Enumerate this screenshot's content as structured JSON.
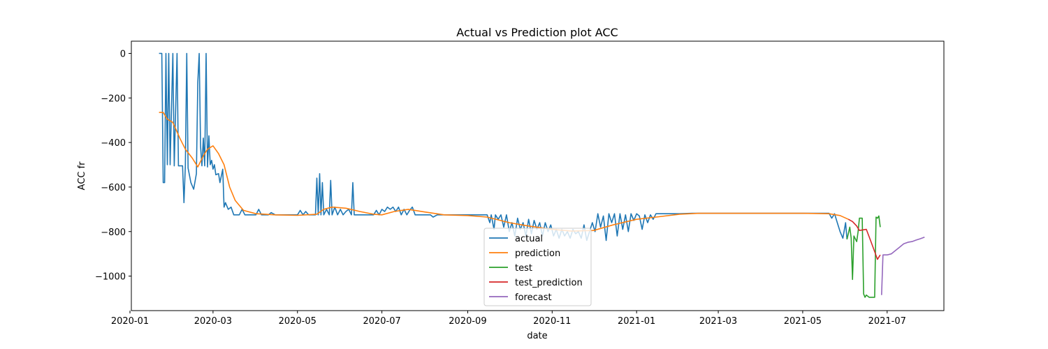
{
  "chart_data": {
    "type": "line",
    "title": "Actual vs Prediction plot ACC",
    "xlabel": "date",
    "ylabel": "ACC fr",
    "xlim": [
      "2020-01-02",
      "2021-08-11"
    ],
    "ylim": [
      -1155,
      55
    ],
    "x_ticks": [
      "2020-01",
      "2020-03",
      "2020-05",
      "2020-07",
      "2020-09",
      "2020-11",
      "2021-01",
      "2021-03",
      "2021-05",
      "2021-07"
    ],
    "y_ticks": [
      0,
      -200,
      -400,
      -600,
      -800,
      -1000
    ],
    "y_tick_labels": [
      "0",
      "−200",
      "−400",
      "−600",
      "−800",
      "−1000"
    ],
    "grid": false,
    "legend_placement": "bottom-center",
    "series": [
      {
        "name": "actual",
        "color": "#1f77b4",
        "points": [
          [
            "2020-01-22",
            0
          ],
          [
            "2020-01-24",
            0
          ],
          [
            "2020-01-25",
            -580
          ],
          [
            "2020-01-26",
            -580
          ],
          [
            "2020-01-27",
            0
          ],
          [
            "2020-01-28",
            -500
          ],
          [
            "2020-01-29",
            0
          ],
          [
            "2020-01-30",
            -500
          ],
          [
            "2020-02-01",
            0
          ],
          [
            "2020-02-02",
            -505
          ],
          [
            "2020-02-04",
            0
          ],
          [
            "2020-02-05",
            -505
          ],
          [
            "2020-02-08",
            -505
          ],
          [
            "2020-02-09",
            -670
          ],
          [
            "2020-02-10",
            -505
          ],
          [
            "2020-02-11",
            0
          ],
          [
            "2020-02-12",
            -515
          ],
          [
            "2020-02-14",
            -580
          ],
          [
            "2020-02-16",
            -610
          ],
          [
            "2020-02-18",
            -540
          ],
          [
            "2020-02-19",
            -130
          ],
          [
            "2020-02-20",
            0
          ],
          [
            "2020-02-21",
            -420
          ],
          [
            "2020-02-22",
            -505
          ],
          [
            "2020-02-23",
            -380
          ],
          [
            "2020-02-24",
            -505
          ],
          [
            "2020-02-25",
            0
          ],
          [
            "2020-02-26",
            -510
          ],
          [
            "2020-02-27",
            -370
          ],
          [
            "2020-02-28",
            -500
          ],
          [
            "2020-02-29",
            -480
          ],
          [
            "2020-03-01",
            -520
          ],
          [
            "2020-03-02",
            -500
          ],
          [
            "2020-03-03",
            -545
          ],
          [
            "2020-03-05",
            -540
          ],
          [
            "2020-03-06",
            -580
          ],
          [
            "2020-03-08",
            -520
          ],
          [
            "2020-03-09",
            -690
          ],
          [
            "2020-03-10",
            -670
          ],
          [
            "2020-03-12",
            -700
          ],
          [
            "2020-03-14",
            -690
          ],
          [
            "2020-03-16",
            -725
          ],
          [
            "2020-03-20",
            -725
          ],
          [
            "2020-03-22",
            -700
          ],
          [
            "2020-03-24",
            -725
          ],
          [
            "2020-04-01",
            -725
          ],
          [
            "2020-04-03",
            -700
          ],
          [
            "2020-04-05",
            -725
          ],
          [
            "2020-04-10",
            -725
          ],
          [
            "2020-04-12",
            -715
          ],
          [
            "2020-04-15",
            -725
          ],
          [
            "2020-05-01",
            -725
          ],
          [
            "2020-05-03",
            -705
          ],
          [
            "2020-05-05",
            -725
          ],
          [
            "2020-05-07",
            -710
          ],
          [
            "2020-05-09",
            -725
          ],
          [
            "2020-05-14",
            -725
          ],
          [
            "2020-05-15",
            -560
          ],
          [
            "2020-05-16",
            -725
          ],
          [
            "2020-05-17",
            -540
          ],
          [
            "2020-05-18",
            -725
          ],
          [
            "2020-05-19",
            -580
          ],
          [
            "2020-05-20",
            -725
          ],
          [
            "2020-05-22",
            -700
          ],
          [
            "2020-05-24",
            -725
          ],
          [
            "2020-05-25",
            -570
          ],
          [
            "2020-05-26",
            -725
          ],
          [
            "2020-05-28",
            -690
          ],
          [
            "2020-05-30",
            -725
          ],
          [
            "2020-06-01",
            -700
          ],
          [
            "2020-06-03",
            -725
          ],
          [
            "2020-06-05",
            -710
          ],
          [
            "2020-06-07",
            -700
          ],
          [
            "2020-06-09",
            -725
          ],
          [
            "2020-06-10",
            -580
          ],
          [
            "2020-06-11",
            -725
          ],
          [
            "2020-06-15",
            -725
          ],
          [
            "2020-06-20",
            -725
          ],
          [
            "2020-06-25",
            -725
          ],
          [
            "2020-06-27",
            -705
          ],
          [
            "2020-06-29",
            -725
          ],
          [
            "2020-07-01",
            -700
          ],
          [
            "2020-07-03",
            -710
          ],
          [
            "2020-07-05",
            -690
          ],
          [
            "2020-07-07",
            -700
          ],
          [
            "2020-07-09",
            -690
          ],
          [
            "2020-07-11",
            -710
          ],
          [
            "2020-07-13",
            -690
          ],
          [
            "2020-07-15",
            -725
          ],
          [
            "2020-07-17",
            -700
          ],
          [
            "2020-07-19",
            -725
          ],
          [
            "2020-07-21",
            -705
          ],
          [
            "2020-07-23",
            -690
          ],
          [
            "2020-07-25",
            -725
          ],
          [
            "2020-08-01",
            -725
          ],
          [
            "2020-08-05",
            -725
          ],
          [
            "2020-08-07",
            -735
          ],
          [
            "2020-08-10",
            -725
          ],
          [
            "2020-08-20",
            -725
          ],
          [
            "2020-08-30",
            -725
          ],
          [
            "2020-09-05",
            -725
          ],
          [
            "2020-09-10",
            -725
          ],
          [
            "2020-09-15",
            -725
          ],
          [
            "2020-09-17",
            -760
          ],
          [
            "2020-09-18",
            -725
          ],
          [
            "2020-09-20",
            -790
          ],
          [
            "2020-09-21",
            -725
          ],
          [
            "2020-09-23",
            -745
          ],
          [
            "2020-09-25",
            -725
          ],
          [
            "2020-09-27",
            -780
          ],
          [
            "2020-09-29",
            -725
          ],
          [
            "2020-10-01",
            -800
          ],
          [
            "2020-10-03",
            -760
          ],
          [
            "2020-10-05",
            -820
          ],
          [
            "2020-10-07",
            -740
          ],
          [
            "2020-10-09",
            -790
          ],
          [
            "2020-10-11",
            -760
          ],
          [
            "2020-10-13",
            -820
          ],
          [
            "2020-10-15",
            -745
          ],
          [
            "2020-10-17",
            -810
          ],
          [
            "2020-10-19",
            -750
          ],
          [
            "2020-10-21",
            -790
          ],
          [
            "2020-10-23",
            -760
          ],
          [
            "2020-10-25",
            -820
          ],
          [
            "2020-10-27",
            -760
          ],
          [
            "2020-10-29",
            -800
          ],
          [
            "2020-10-31",
            -770
          ],
          [
            "2020-11-02",
            -820
          ],
          [
            "2020-11-04",
            -790
          ],
          [
            "2020-11-06",
            -830
          ],
          [
            "2020-11-08",
            -790
          ],
          [
            "2020-11-10",
            -820
          ],
          [
            "2020-11-12",
            -800
          ],
          [
            "2020-11-14",
            -830
          ],
          [
            "2020-11-16",
            -790
          ],
          [
            "2020-11-18",
            -810
          ],
          [
            "2020-11-20",
            -800
          ],
          [
            "2020-11-22",
            -830
          ],
          [
            "2020-11-24",
            -770
          ],
          [
            "2020-11-26",
            -840
          ],
          [
            "2020-11-28",
            -800
          ],
          [
            "2020-11-30",
            -760
          ],
          [
            "2020-12-02",
            -800
          ],
          [
            "2020-12-04",
            -720
          ],
          [
            "2020-12-06",
            -780
          ],
          [
            "2020-12-08",
            -730
          ],
          [
            "2020-12-10",
            -840
          ],
          [
            "2020-12-12",
            -720
          ],
          [
            "2020-12-14",
            -760
          ],
          [
            "2020-12-16",
            -720
          ],
          [
            "2020-12-18",
            -820
          ],
          [
            "2020-12-20",
            -720
          ],
          [
            "2020-12-22",
            -790
          ],
          [
            "2020-12-24",
            -725
          ],
          [
            "2020-12-26",
            -800
          ],
          [
            "2020-12-28",
            -720
          ],
          [
            "2020-12-30",
            -750
          ],
          [
            "2021-01-01",
            -720
          ],
          [
            "2021-01-03",
            -730
          ],
          [
            "2021-01-05",
            -790
          ],
          [
            "2021-01-07",
            -725
          ],
          [
            "2021-01-09",
            -760
          ],
          [
            "2021-01-11",
            -725
          ],
          [
            "2021-01-13",
            -745
          ],
          [
            "2021-01-15",
            -720
          ],
          [
            "2021-01-20",
            -720
          ],
          [
            "2021-01-25",
            -720
          ],
          [
            "2021-02-01",
            -720
          ],
          [
            "2021-02-10",
            -718
          ],
          [
            "2021-03-01",
            -718
          ],
          [
            "2021-04-01",
            -718
          ],
          [
            "2021-05-01",
            -718
          ],
          [
            "2021-05-20",
            -718
          ],
          [
            "2021-05-22",
            -740
          ],
          [
            "2021-05-24",
            -720
          ],
          [
            "2021-05-26",
            -760
          ],
          [
            "2021-05-28",
            -800
          ],
          [
            "2021-05-30",
            -830
          ],
          [
            "2021-06-01",
            -760
          ],
          [
            "2021-06-02",
            -835
          ]
        ]
      },
      {
        "name": "prediction",
        "color": "#ff7f0e",
        "points": [
          [
            "2020-01-22",
            -265
          ],
          [
            "2020-01-25",
            -265
          ],
          [
            "2020-01-28",
            -295
          ],
          [
            "2020-02-01",
            -310
          ],
          [
            "2020-02-06",
            -380
          ],
          [
            "2020-02-10",
            -430
          ],
          [
            "2020-02-15",
            -470
          ],
          [
            "2020-02-19",
            -510
          ],
          [
            "2020-02-23",
            -460
          ],
          [
            "2020-02-26",
            -430
          ],
          [
            "2020-03-01",
            -415
          ],
          [
            "2020-03-05",
            -450
          ],
          [
            "2020-03-09",
            -500
          ],
          [
            "2020-03-13",
            -600
          ],
          [
            "2020-03-17",
            -660
          ],
          [
            "2020-03-23",
            -705
          ],
          [
            "2020-04-01",
            -720
          ],
          [
            "2020-04-15",
            -725
          ],
          [
            "2020-05-01",
            -727
          ],
          [
            "2020-05-15",
            -722
          ],
          [
            "2020-05-20",
            -700
          ],
          [
            "2020-05-26",
            -690
          ],
          [
            "2020-06-05",
            -695
          ],
          [
            "2020-06-15",
            -710
          ],
          [
            "2020-06-25",
            -722
          ],
          [
            "2020-07-01",
            -725
          ],
          [
            "2020-07-10",
            -710
          ],
          [
            "2020-07-20",
            -700
          ],
          [
            "2020-08-01",
            -712
          ],
          [
            "2020-08-15",
            -725
          ],
          [
            "2020-09-01",
            -728
          ],
          [
            "2020-09-15",
            -735
          ],
          [
            "2020-10-01",
            -760
          ],
          [
            "2020-10-15",
            -775
          ],
          [
            "2020-11-01",
            -790
          ],
          [
            "2020-11-15",
            -798
          ],
          [
            "2020-12-01",
            -795
          ],
          [
            "2020-12-15",
            -770
          ],
          [
            "2021-01-01",
            -745
          ],
          [
            "2021-01-15",
            -735
          ],
          [
            "2021-02-01",
            -722
          ],
          [
            "2021-02-15",
            -718
          ],
          [
            "2021-05-01",
            -718
          ],
          [
            "2021-05-20",
            -720
          ],
          [
            "2021-05-28",
            -728
          ],
          [
            "2021-06-03",
            -745
          ]
        ]
      },
      {
        "name": "test",
        "color": "#2ca02c",
        "points": [
          [
            "2021-06-02",
            -835
          ],
          [
            "2021-06-04",
            -780
          ],
          [
            "2021-06-05",
            -830
          ],
          [
            "2021-06-06",
            -1015
          ],
          [
            "2021-06-07",
            -820
          ],
          [
            "2021-06-09",
            -845
          ],
          [
            "2021-06-10",
            -800
          ],
          [
            "2021-06-11",
            -740
          ],
          [
            "2021-06-13",
            -740
          ],
          [
            "2021-06-14",
            -1080
          ],
          [
            "2021-06-15",
            -1095
          ],
          [
            "2021-06-16",
            -1085
          ],
          [
            "2021-06-18",
            -1095
          ],
          [
            "2021-06-20",
            -1095
          ],
          [
            "2021-06-22",
            -1095
          ],
          [
            "2021-06-23",
            -735
          ],
          [
            "2021-06-24",
            -740
          ],
          [
            "2021-06-25",
            -730
          ],
          [
            "2021-06-26",
            -780
          ]
        ]
      },
      {
        "name": "test_prediction",
        "color": "#d62728",
        "points": [
          [
            "2021-06-03",
            -745
          ],
          [
            "2021-06-06",
            -755
          ],
          [
            "2021-06-09",
            -775
          ],
          [
            "2021-06-11",
            -795
          ],
          [
            "2021-06-14",
            -792
          ],
          [
            "2021-06-16",
            -790
          ],
          [
            "2021-06-19",
            -840
          ],
          [
            "2021-06-22",
            -890
          ],
          [
            "2021-06-24",
            -925
          ],
          [
            "2021-06-26",
            -905
          ]
        ]
      },
      {
        "name": "forecast",
        "color": "#9467bd",
        "points": [
          [
            "2021-06-27",
            -1085
          ],
          [
            "2021-06-28",
            -905
          ],
          [
            "2021-07-01",
            -905
          ],
          [
            "2021-07-04",
            -900
          ],
          [
            "2021-07-07",
            -885
          ],
          [
            "2021-07-10",
            -870
          ],
          [
            "2021-07-13",
            -855
          ],
          [
            "2021-07-16",
            -848
          ],
          [
            "2021-07-19",
            -845
          ],
          [
            "2021-07-22",
            -838
          ],
          [
            "2021-07-25",
            -832
          ],
          [
            "2021-07-28",
            -825
          ]
        ]
      }
    ]
  }
}
